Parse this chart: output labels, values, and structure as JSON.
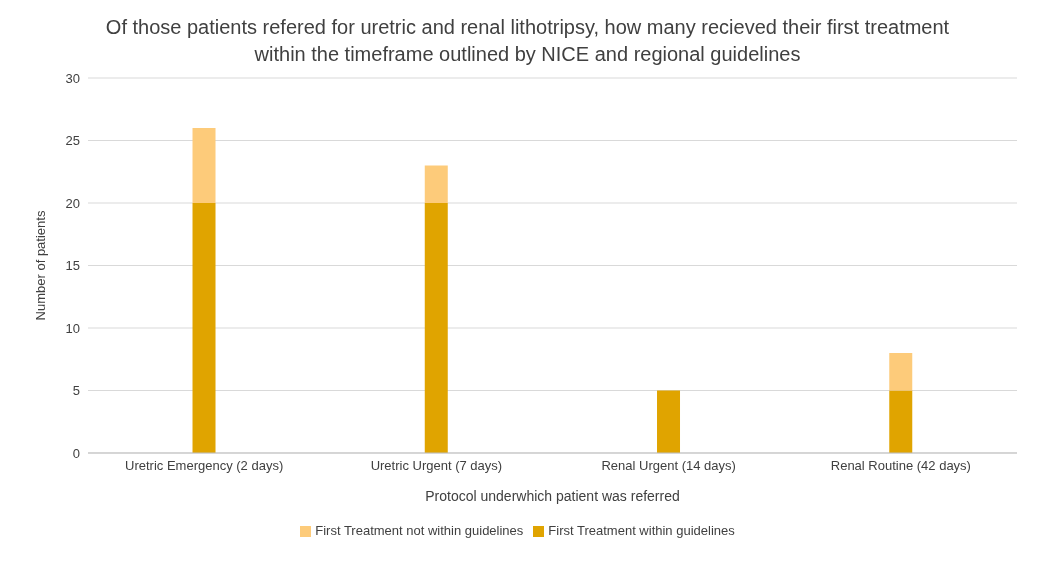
{
  "chart_data": {
    "type": "bar",
    "title": "Of those patients refered for uretric and renal lithotripsy, how many recieved their first treatment within the timeframe outlined by NICE and regional guidelines",
    "xlabel": "Protocol underwhich patient was referred",
    "ylabel": "Number of patients",
    "categories": [
      "Uretric Emergency (2 days)",
      "Uretric Urgent (7 days)",
      "Renal Urgent (14 days)",
      "Renal Routine (42 days)"
    ],
    "series": [
      {
        "name": "First Treatment within guidelines",
        "color": "#e0a400",
        "values": [
          20,
          20,
          5,
          5
        ]
      },
      {
        "name": "First Treatment not within guidelines",
        "color": "#fdcb7a",
        "values": [
          6,
          3,
          0,
          3
        ]
      }
    ],
    "stacked": true,
    "ylim": [
      0,
      30
    ],
    "yticks": [
      0,
      5,
      10,
      15,
      20,
      25,
      30
    ],
    "grid": "y",
    "legend": "bottom"
  }
}
